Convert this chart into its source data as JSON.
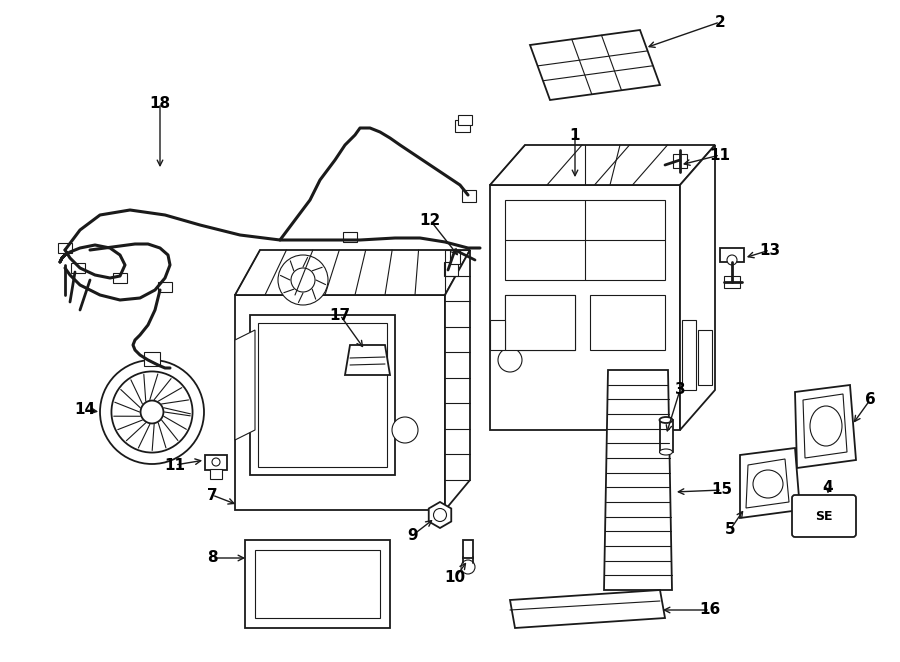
{
  "bg_color": "#ffffff",
  "line_color": "#1a1a1a",
  "text_color": "#000000",
  "fig_width": 9.0,
  "fig_height": 6.62,
  "dpi": 100
}
